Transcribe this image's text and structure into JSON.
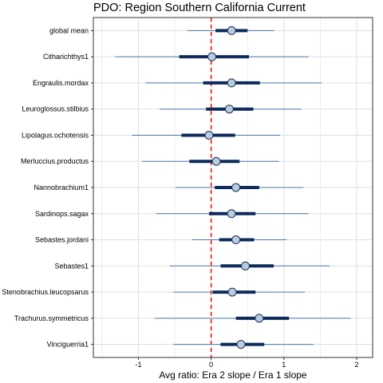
{
  "chart_data": {
    "type": "forest",
    "title": "PDO: Region Southern California Current",
    "xlabel": "Avg ratio: Era 2 slope / Era 1 slope",
    "ylabel": "",
    "xlim": [
      -1.62,
      2.22
    ],
    "xticks": [
      -1,
      0,
      1,
      2
    ],
    "x_tick_labels": [
      "-1",
      "0",
      "1",
      "2"
    ],
    "reference_line": 0,
    "reference_line_color": "#ff0000",
    "grid": true,
    "categories": [
      "global mean",
      "Citharichthys1",
      "Engraulis.mordax",
      "Leuroglossus.stilbius",
      "Lipolagus.ochotensis",
      "Merluccius.productus",
      "Nannobrachium1",
      "Sardinops.sagax",
      "Sebastes.jordani",
      "Sebastes1",
      "Stenobrachius.leucopsarus",
      "Trachurus.symmetricus",
      "Vinciguerria1"
    ],
    "estimates": [
      0.28,
      0.01,
      0.28,
      0.25,
      -0.03,
      0.07,
      0.34,
      0.28,
      0.34,
      0.47,
      0.29,
      0.66,
      0.41
    ],
    "inner_interval": [
      [
        0.06,
        0.5
      ],
      [
        -0.44,
        0.52
      ],
      [
        -0.11,
        0.67
      ],
      [
        -0.07,
        0.58
      ],
      [
        -0.41,
        0.33
      ],
      [
        -0.3,
        0.39
      ],
      [
        0.05,
        0.66
      ],
      [
        -0.03,
        0.61
      ],
      [
        0.11,
        0.59
      ],
      [
        0.13,
        0.86
      ],
      [
        0.02,
        0.61
      ],
      [
        0.34,
        1.07
      ],
      [
        0.13,
        0.73
      ]
    ],
    "outer_interval": [
      [
        -0.33,
        0.87
      ],
      [
        -1.32,
        1.34
      ],
      [
        -0.9,
        1.52
      ],
      [
        -0.71,
        1.24
      ],
      [
        -1.09,
        0.95
      ],
      [
        -0.95,
        0.93
      ],
      [
        -0.49,
        1.27
      ],
      [
        -0.76,
        1.34
      ],
      [
        -0.26,
        1.04
      ],
      [
        -0.57,
        1.63
      ],
      [
        -0.52,
        1.29
      ],
      [
        -0.78,
        1.92
      ],
      [
        -0.52,
        1.41
      ]
    ],
    "colors": {
      "outer_line": "#4a78a8",
      "inner_line": "#0d2b5c",
      "point_fill": "#b5cde4",
      "point_stroke": "#1f2f4a",
      "grid": "#dddddd",
      "panel_border": "#333333"
    }
  }
}
